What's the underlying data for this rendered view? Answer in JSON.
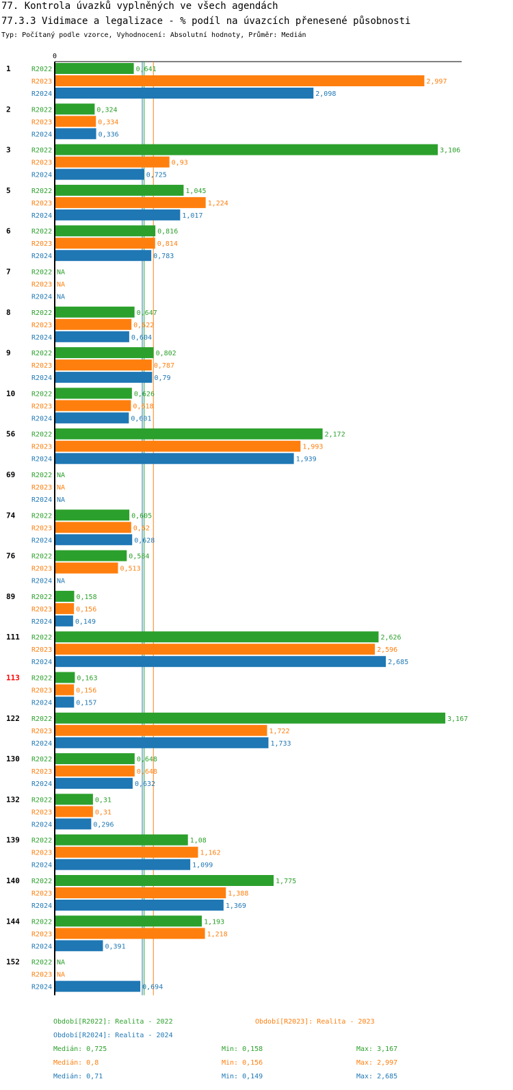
{
  "title": "77. Kontrola úvazků vyplněných ve všech agendách",
  "subtitle": "77.3.3 Vidimace a legalizace - % podíl na úvazcích přenesené působnosti",
  "info": "Typ: Počítaný podle vzorce, Vyhodnocení: Absolutní hodnoty, Průměr: Medián",
  "colors": {
    "R2022": "#2ca02c",
    "R2023": "#ff7f0e",
    "R2024": "#1f77b4",
    "highlight": "#ff0000",
    "text": "#000000"
  },
  "chart_data": {
    "type": "bar",
    "orientation": "horizontal",
    "axis_zero_label": "0",
    "xlim": [
      0,
      3.3
    ],
    "na_label": "NA",
    "series_names": [
      "R2022",
      "R2023",
      "R2024"
    ],
    "groups": [
      {
        "label": "1",
        "values": [
          0.641,
          2.997,
          2.098
        ],
        "labels": [
          "0,641",
          "2,997",
          "2,098"
        ]
      },
      {
        "label": "2",
        "values": [
          0.324,
          0.334,
          0.336
        ],
        "labels": [
          "0,324",
          "0,334",
          "0,336"
        ]
      },
      {
        "label": "3",
        "values": [
          3.106,
          0.93,
          0.725
        ],
        "labels": [
          "3,106",
          "0,93",
          "0,725"
        ]
      },
      {
        "label": "5",
        "values": [
          1.045,
          1.224,
          1.017
        ],
        "labels": [
          "1,045",
          "1,224",
          "1,017"
        ]
      },
      {
        "label": "6",
        "values": [
          0.816,
          0.814,
          0.783
        ],
        "labels": [
          "0,816",
          "0,814",
          "0,783"
        ]
      },
      {
        "label": "7",
        "values": [
          null,
          null,
          null
        ],
        "labels": [
          "NA",
          "NA",
          "NA"
        ]
      },
      {
        "label": "8",
        "values": [
          0.647,
          0.622,
          0.604
        ],
        "labels": [
          "0,647",
          "0,622",
          "0,604"
        ]
      },
      {
        "label": "9",
        "values": [
          0.802,
          0.787,
          0.79
        ],
        "labels": [
          "0,802",
          "0,787",
          "0,79"
        ]
      },
      {
        "label": "10",
        "values": [
          0.626,
          0.618,
          0.601
        ],
        "labels": [
          "0,626",
          "0,618",
          "0,601"
        ]
      },
      {
        "label": "56",
        "values": [
          2.172,
          1.993,
          1.939
        ],
        "labels": [
          "2,172",
          "1,993",
          "1,939"
        ]
      },
      {
        "label": "69",
        "values": [
          null,
          null,
          null
        ],
        "labels": [
          "NA",
          "NA",
          "NA"
        ]
      },
      {
        "label": "74",
        "values": [
          0.605,
          0.62,
          0.628
        ],
        "labels": [
          "0,605",
          "0,62",
          "0,628"
        ]
      },
      {
        "label": "76",
        "values": [
          0.584,
          0.513,
          null
        ],
        "labels": [
          "0,584",
          "0,513",
          "NA"
        ]
      },
      {
        "label": "89",
        "values": [
          0.158,
          0.156,
          0.149
        ],
        "labels": [
          "0,158",
          "0,156",
          "0,149"
        ]
      },
      {
        "label": "111",
        "values": [
          2.626,
          2.596,
          2.685
        ],
        "labels": [
          "2,626",
          "2,596",
          "2,685"
        ]
      },
      {
        "label": "113",
        "highlight": true,
        "values": [
          0.163,
          0.156,
          0.157
        ],
        "labels": [
          "0,163",
          "0,156",
          "0,157"
        ]
      },
      {
        "label": "122",
        "values": [
          3.167,
          1.722,
          1.733
        ],
        "labels": [
          "3,167",
          "1,722",
          "1,733"
        ]
      },
      {
        "label": "130",
        "values": [
          0.648,
          0.648,
          0.632
        ],
        "labels": [
          "0,648",
          "0,648",
          "0,632"
        ]
      },
      {
        "label": "132",
        "values": [
          0.31,
          0.31,
          0.296
        ],
        "labels": [
          "0,31",
          "0,31",
          "0,296"
        ]
      },
      {
        "label": "139",
        "values": [
          1.08,
          1.162,
          1.099
        ],
        "labels": [
          "1,08",
          "1,162",
          "1,099"
        ]
      },
      {
        "label": "140",
        "values": [
          1.775,
          1.388,
          1.369
        ],
        "labels": [
          "1,775",
          "1,388",
          "1,369"
        ]
      },
      {
        "label": "144",
        "values": [
          1.193,
          1.218,
          0.391
        ],
        "labels": [
          "1,193",
          "1,218",
          "0,391"
        ]
      },
      {
        "label": "152",
        "values": [
          null,
          null,
          0.694
        ],
        "labels": [
          "NA",
          "NA",
          "0,694"
        ]
      }
    ],
    "reference_lines": [
      {
        "series": "R2022",
        "value": 0.725
      },
      {
        "series": "R2023",
        "value": 0.8
      },
      {
        "series": "R2024",
        "value": 0.71
      }
    ],
    "legend": {
      "periods": [
        {
          "series": "R2022",
          "text": "Období[R2022]: Realita - 2022"
        },
        {
          "series": "R2023",
          "text": "Období[R2023]: Realita - 2023"
        },
        {
          "series": "R2024",
          "text": "Období[R2024]: Realita - 2024"
        }
      ],
      "stats": [
        {
          "series": "R2022",
          "median": "Medián: 0,725",
          "min": "Min: 0,158",
          "max": "Max: 3,167"
        },
        {
          "series": "R2023",
          "median": "Medián: 0,8",
          "min": "Min: 0,156",
          "max": "Max: 2,997"
        },
        {
          "series": "R2024",
          "median": "Medián: 0,71",
          "min": "Min: 0,149",
          "max": "Max: 2,685"
        }
      ]
    }
  }
}
